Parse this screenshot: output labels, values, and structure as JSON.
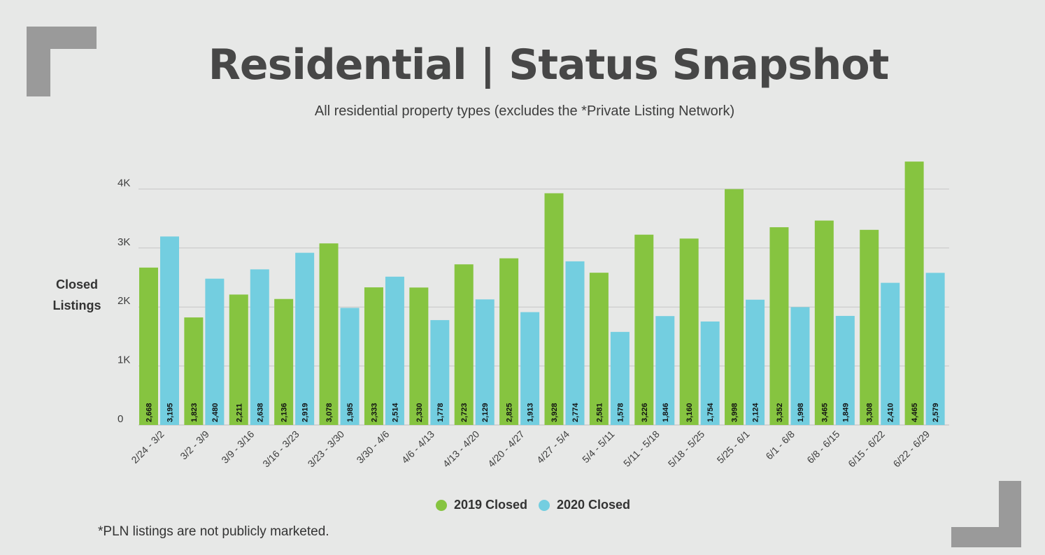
{
  "chart_data": {
    "type": "bar",
    "title": "Residential | Status Snapshot",
    "subtitle": "All residential property types (excludes the *Private Listing Network)",
    "ylabel": [
      "Closed",
      "Listings"
    ],
    "ylim": [
      0,
      4465
    ],
    "yticks": [
      {
        "value": 0,
        "label": "0"
      },
      {
        "value": 1000,
        "label": "1K"
      },
      {
        "value": 2000,
        "label": "2K"
      },
      {
        "value": 3000,
        "label": "3K"
      },
      {
        "value": 4000,
        "label": "4K"
      }
    ],
    "grid": true,
    "legend_position": "bottom",
    "categories": [
      "2/24 - 3/2",
      "3/2 - 3/9",
      "3/9 - 3/16",
      "3/16 - 3/23",
      "3/23 - 3/30",
      "3/30 - 4/6",
      "4/6 - 4/13",
      "4/13 - 4/20",
      "4/20 - 4/27",
      "4/27 - 5/4",
      "5/4 - 5/11",
      "5/11 - 5/18",
      "5/18 - 5/25",
      "5/25 - 6/1",
      "6/1 - 6/8",
      "6/8 - 6/15",
      "6/15 - 6/22",
      "6/22 - 6/29"
    ],
    "series": [
      {
        "name": "2019 Closed",
        "color": "#86c440",
        "values": [
          2668,
          1823,
          2211,
          2136,
          3078,
          2333,
          2330,
          2723,
          2825,
          3928,
          2581,
          3226,
          3160,
          3998,
          3352,
          3465,
          3308,
          4465
        ],
        "labels": [
          "2,668",
          "1,823",
          "2,211",
          "2,136",
          "3,078",
          "2,333",
          "2,330",
          "2,723",
          "2,825",
          "3,928",
          "2,581",
          "3,226",
          "3,160",
          "3,998",
          "3,352",
          "3,465",
          "3,308",
          "4,465"
        ]
      },
      {
        "name": "2020 Closed",
        "color": "#73cee0",
        "values": [
          3195,
          2480,
          2638,
          2919,
          1985,
          2514,
          1778,
          2129,
          1913,
          2774,
          1578,
          1846,
          1754,
          2124,
          1998,
          1849,
          2410,
          2579
        ],
        "labels": [
          "3,195",
          "2,480",
          "2,638",
          "2,919",
          "1,985",
          "2,514",
          "1,778",
          "2,129",
          "1,913",
          "2,774",
          "1,578",
          "1,846",
          "1,754",
          "2,124",
          "1,998",
          "1,849",
          "2,410",
          "2,579"
        ]
      }
    ]
  },
  "footnote": "*PLN listings are not publicly marketed.",
  "colors": {
    "background": "#e7e8e7",
    "corner": "#9a9a9a",
    "grid": "#c6c6c6"
  }
}
